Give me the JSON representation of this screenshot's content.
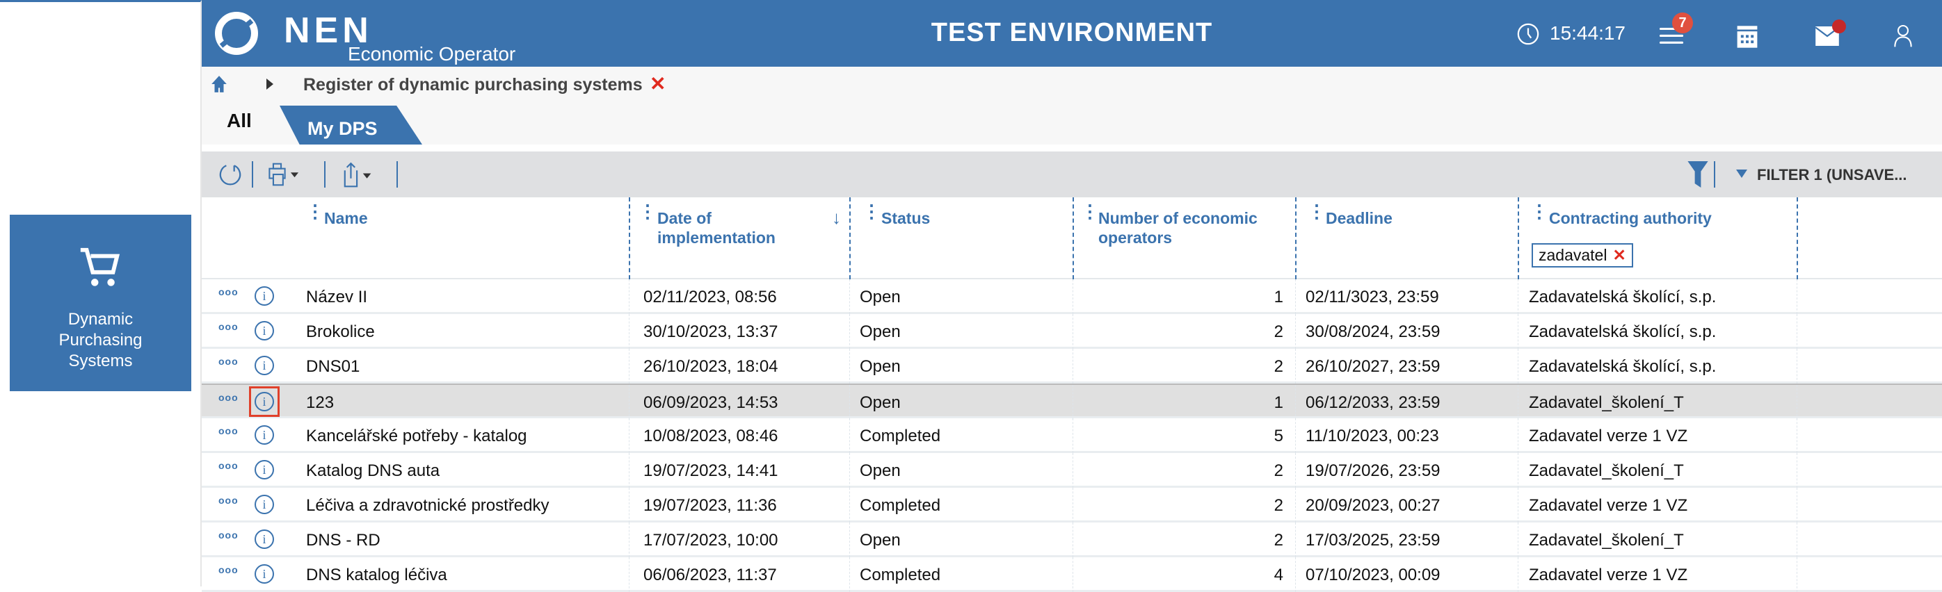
{
  "sidebar": {
    "tile_label_lines": [
      "Dynamic",
      "Purchasing",
      "Systems"
    ],
    "tile_icon": "cart-icon"
  },
  "header": {
    "logo": "NEN",
    "subtitle": "Economic Operator",
    "environment": "TEST ENVIRONMENT",
    "time": "15:44:17",
    "notifications_count": "7",
    "brand_color": "#3b73ae"
  },
  "breadcrumb": {
    "current": "Register of dynamic purchasing systems"
  },
  "tabs": [
    {
      "label": "All",
      "active": true
    },
    {
      "label": "My DPS",
      "active": false
    }
  ],
  "toolbar": {
    "filter_label": "FILTER 1 (UNSAVE..."
  },
  "table": {
    "columns": [
      "Name",
      "Date of implementation",
      "Status",
      "Number of economic operators",
      "Deadline",
      "Contracting authority"
    ],
    "column_lines": {
      "date": [
        "Date of",
        "implementation"
      ],
      "operators": [
        "Number of economic",
        "operators"
      ]
    },
    "sort": {
      "column": "Date of implementation",
      "direction": "descending"
    },
    "filter_chip": "zadavatel",
    "selected_row": 3,
    "rows": [
      {
        "name": "Název II",
        "date": "02/11/2023, 08:56",
        "status": "Open",
        "operators": "1",
        "deadline": "02/11/3023, 23:59",
        "authority": "Zadavatelská školící, s.p."
      },
      {
        "name": "Brokolice",
        "date": "30/10/2023, 13:37",
        "status": "Open",
        "operators": "2",
        "deadline": "30/08/2024, 23:59",
        "authority": "Zadavatelská školící, s.p."
      },
      {
        "name": "DNS01",
        "date": "26/10/2023, 18:04",
        "status": "Open",
        "operators": "2",
        "deadline": "26/10/2027, 23:59",
        "authority": "Zadavatelská školící, s.p."
      },
      {
        "name": "123",
        "date": "06/09/2023, 14:53",
        "status": "Open",
        "operators": "1",
        "deadline": "06/12/2033, 23:59",
        "authority": "Zadavatel_školení_T"
      },
      {
        "name": "Kancelářské potřeby - katalog",
        "date": "10/08/2023, 08:46",
        "status": "Completed",
        "operators": "5",
        "deadline": "11/10/2023, 00:23",
        "authority": "Zadavatel verze 1 VZ"
      },
      {
        "name": "Katalog DNS auta",
        "date": "19/07/2023, 14:41",
        "status": "Open",
        "operators": "2",
        "deadline": "19/07/2026, 23:59",
        "authority": "Zadavatel_školení_T"
      },
      {
        "name": "Léčiva a zdravotnické prostředky",
        "date": "19/07/2023, 11:36",
        "status": "Completed",
        "operators": "2",
        "deadline": "20/09/2023, 00:27",
        "authority": "Zadavatel verze 1 VZ"
      },
      {
        "name": "DNS - RD",
        "date": "17/07/2023, 10:00",
        "status": "Open",
        "operators": "2",
        "deadline": "17/03/2025, 23:59",
        "authority": "Zadavatel_školení_T"
      },
      {
        "name": "DNS katalog léčiva",
        "date": "06/06/2023, 11:37",
        "status": "Completed",
        "operators": "4",
        "deadline": "07/10/2023, 00:09",
        "authority": "Zadavatel verze 1 VZ"
      }
    ]
  }
}
